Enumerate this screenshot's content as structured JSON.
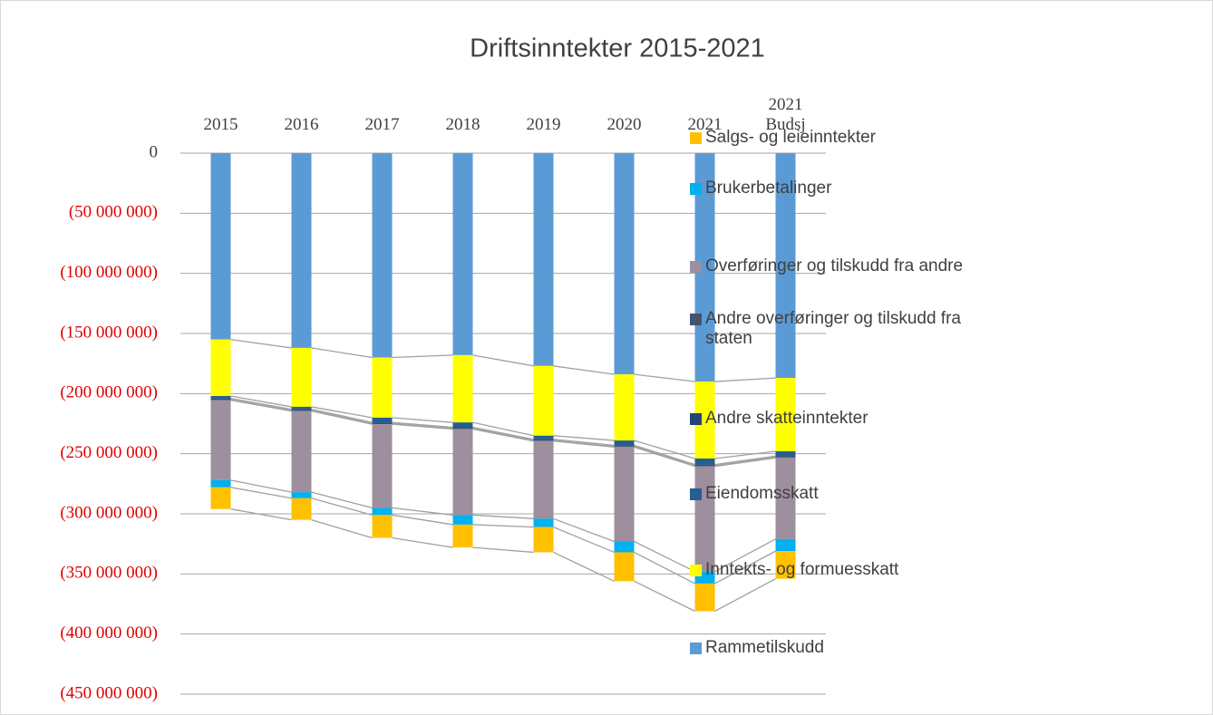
{
  "chart_data": {
    "type": "stacked_bar",
    "title": "Driftsinntekter 2015-2021",
    "categories": [
      "2015",
      "2016",
      "2017",
      "2018",
      "2019",
      "2020",
      "2021",
      "2021 Budsj"
    ],
    "series": [
      {
        "name": "Rammetilskudd",
        "color": "#5b9bd5",
        "values": [
          -155000000,
          -162000000,
          -170000000,
          -168000000,
          -177000000,
          -184000000,
          -190000000,
          -187000000
        ]
      },
      {
        "name": "Inntekts- og formuesskatt",
        "color": "#ffff00",
        "values": [
          -47000000,
          -49000000,
          -50000000,
          -56000000,
          -58000000,
          -55000000,
          -64000000,
          -61000000
        ]
      },
      {
        "name": "Eiendomsskatt",
        "color": "#255e91",
        "values": [
          -2000000,
          -2000000,
          -4000000,
          -4000000,
          -3000000,
          -4000000,
          -5000000,
          -4000000
        ]
      },
      {
        "name": "Andre skatteinntekter",
        "color": "#264478",
        "values": [
          -1000000,
          -1000000,
          -1000000,
          -1000000,
          -1000000,
          -1000000,
          -1000000,
          -1000000
        ]
      },
      {
        "name": "Andre overføringer og tilskudd fra staten",
        "color": "#44546a",
        "values": [
          -500000,
          -500000,
          -500000,
          -500000,
          -500000,
          -500000,
          -500000,
          -500000
        ]
      },
      {
        "name": "Overføringer og tilskudd fra andre",
        "color": "#9d8f9d",
        "values": [
          -66500000,
          -67500000,
          -69500000,
          -71500000,
          -64500000,
          -78500000,
          -87500000,
          -67500000
        ]
      },
      {
        "name": "Brukerbetalinger",
        "color": "#00b0f0",
        "values": [
          -6000000,
          -5000000,
          -6000000,
          -8000000,
          -7000000,
          -9000000,
          -10000000,
          -10000000
        ]
      },
      {
        "name": "Salgs- og leieinntekter",
        "color": "#ffc000",
        "values": [
          -18000000,
          -18000000,
          -19000000,
          -19000000,
          -21000000,
          -24000000,
          -23000000,
          -23000000
        ]
      }
    ],
    "ylim": [
      0,
      -450000000
    ],
    "yticks": [
      0,
      {
        "value": -50000000,
        "label": "(50 000 000)"
      },
      {
        "value": -100000000,
        "label": "(100 000 000)"
      },
      {
        "value": -150000000,
        "label": "(150 000 000)"
      },
      {
        "value": -200000000,
        "label": "(200 000 000)"
      },
      {
        "value": -250000000,
        "label": "(250 000 000)"
      },
      {
        "value": -300000000,
        "label": "(300 000 000)"
      },
      {
        "value": -350000000,
        "label": "(350 000 000)"
      },
      {
        "value": -400000000,
        "label": "(400 000 000)"
      },
      {
        "value": -450000000,
        "label": "(450 000 000)"
      }
    ],
    "grid": true,
    "legend": "right",
    "negative_tick_color": "#e00000"
  }
}
